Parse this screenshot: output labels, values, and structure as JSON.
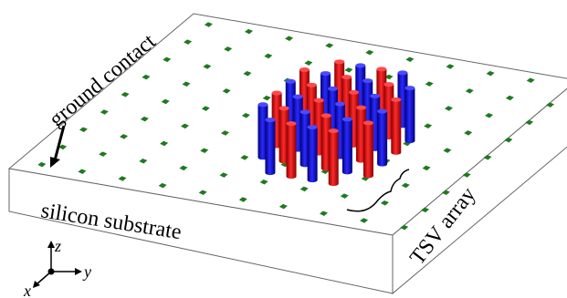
{
  "labels": {
    "ground_contact": "ground contact",
    "silicon_substrate": "silicon substrate",
    "tsv_array": "TSV array"
  },
  "axes": {
    "z": "z",
    "y": "y",
    "x": "x"
  }
}
